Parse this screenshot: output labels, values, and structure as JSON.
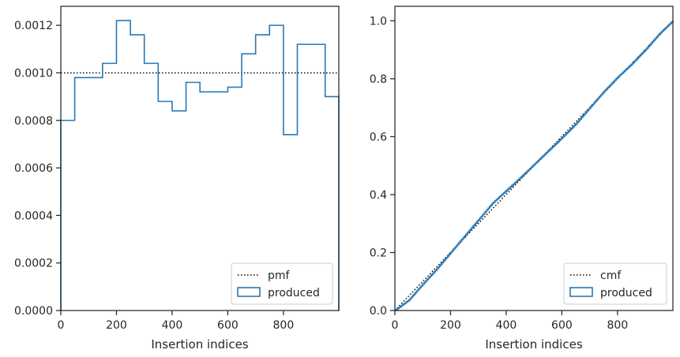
{
  "colors": {
    "produced": "#2878b5",
    "reference": "#000000",
    "axes": "#262626",
    "legend_border": "#cccccc"
  },
  "chart_data": [
    {
      "type": "histogram",
      "xlabel": "Insertion indices",
      "ylabel": "",
      "xlim": [
        0,
        999
      ],
      "ylim": [
        0,
        0.00128
      ],
      "xticks": [
        0,
        200,
        400,
        600,
        800
      ],
      "xtick_labels": [
        "0",
        "200",
        "400",
        "600",
        "800"
      ],
      "yticks": [
        0,
        0.0002,
        0.0004,
        0.0006,
        0.0008,
        0.001,
        0.0012
      ],
      "ytick_labels": [
        "0.0000",
        "0.0002",
        "0.0004",
        "0.0006",
        "0.0008",
        "0.0010",
        "0.0012"
      ],
      "grid": false,
      "legend_position": "lower-right",
      "reference_line": {
        "name": "pmf",
        "value": 0.001,
        "style": "dotted"
      },
      "series": [
        {
          "name": "produced",
          "style": "step",
          "bin_edges": [
            0,
            50,
            150,
            200,
            250,
            300,
            350,
            400,
            450,
            500,
            600,
            650,
            700,
            750,
            800,
            850,
            950,
            999
          ],
          "values": [
            0.0008,
            0.00098,
            0.00104,
            0.00122,
            0.00116,
            0.00104,
            0.00088,
            0.00084,
            0.00096,
            0.00092,
            0.00094,
            0.00108,
            0.00116,
            0.0012,
            0.00074,
            0.00112,
            0.0009
          ]
        }
      ],
      "legend": [
        "pmf",
        "produced"
      ]
    },
    {
      "type": "line",
      "xlabel": "Insertion indices",
      "ylabel": "",
      "xlim": [
        0,
        999
      ],
      "ylim": [
        0,
        1.05
      ],
      "xticks": [
        0,
        200,
        400,
        600,
        800
      ],
      "xtick_labels": [
        "0",
        "200",
        "400",
        "600",
        "800"
      ],
      "yticks": [
        0,
        0.2,
        0.4,
        0.6,
        0.8,
        1.0
      ],
      "ytick_labels": [
        "0.0",
        "0.2",
        "0.4",
        "0.6",
        "0.8",
        "1.0"
      ],
      "grid": false,
      "legend_position": "lower-right",
      "reference_line": {
        "name": "cmf",
        "from": [
          0,
          0
        ],
        "to": [
          999,
          1.0
        ],
        "style": "dotted"
      },
      "series": [
        {
          "name": "produced",
          "x": [
            0,
            50,
            100,
            150,
            200,
            250,
            300,
            350,
            400,
            450,
            500,
            550,
            600,
            650,
            700,
            750,
            800,
            850,
            900,
            950,
            999
          ],
          "y": [
            0,
            0.036,
            0.091,
            0.143,
            0.2,
            0.257,
            0.313,
            0.37,
            0.414,
            0.458,
            0.504,
            0.55,
            0.596,
            0.644,
            0.7,
            0.755,
            0.805,
            0.85,
            0.9,
            0.955,
            1.0
          ]
        }
      ],
      "legend": [
        "cmf",
        "produced"
      ]
    }
  ]
}
